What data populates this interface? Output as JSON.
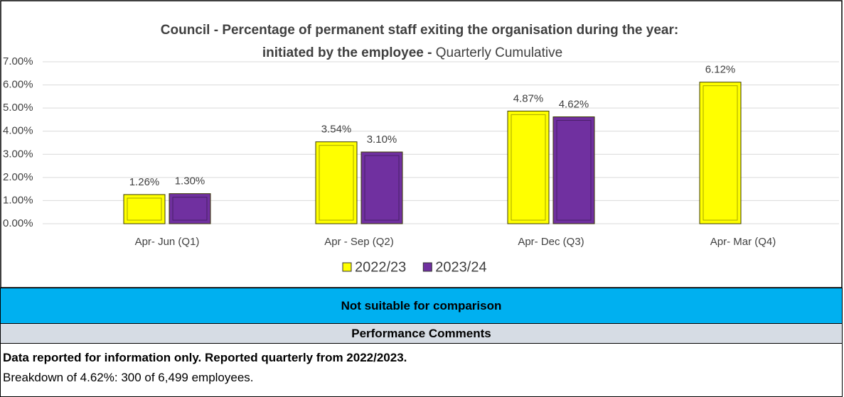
{
  "chart_data": {
    "type": "bar",
    "title": "Council - Percentage of permanent staff exiting the organisation during the year:",
    "title_line2": "initiated by the employee -",
    "subtitle": "Quarterly Cumulative",
    "categories": [
      "Apr- Jun  (Q1)",
      "Apr - Sep  (Q2)",
      "Apr- Dec  (Q3)",
      "Apr- Mar  (Q4)"
    ],
    "series": [
      {
        "name": "2022/23",
        "color": "#ffff00",
        "values": [
          1.26,
          3.54,
          4.87,
          6.12
        ],
        "value_labels": [
          "1.26%",
          "3.54%",
          "4.87%",
          "6.12%"
        ]
      },
      {
        "name": "2023/24",
        "color": "#7030a0",
        "values": [
          1.3,
          3.1,
          4.62,
          null
        ],
        "value_labels": [
          "1.30%",
          "3.10%",
          "4.62%",
          null
        ]
      }
    ],
    "ylim": [
      0,
      7
    ],
    "yticks": [
      {
        "value": 0,
        "label": "0.00%"
      },
      {
        "value": 1,
        "label": "1.00%"
      },
      {
        "value": 2,
        "label": "2.00%"
      },
      {
        "value": 3,
        "label": "3.00%"
      },
      {
        "value": 4,
        "label": "4.00%"
      },
      {
        "value": 5,
        "label": "5.00%"
      },
      {
        "value": 6,
        "label": "6.00%"
      },
      {
        "value": 7,
        "label": "7.00%"
      }
    ],
    "grid": true,
    "legend": "bottom"
  },
  "status": "Not suitable for comparison",
  "comments": {
    "heading": "Performance Comments",
    "lines": [
      "Data reported for information only. Reported quarterly from 2022/2023.",
      "Breakdown of 4.62%:  300 of 6,499 employees."
    ]
  }
}
